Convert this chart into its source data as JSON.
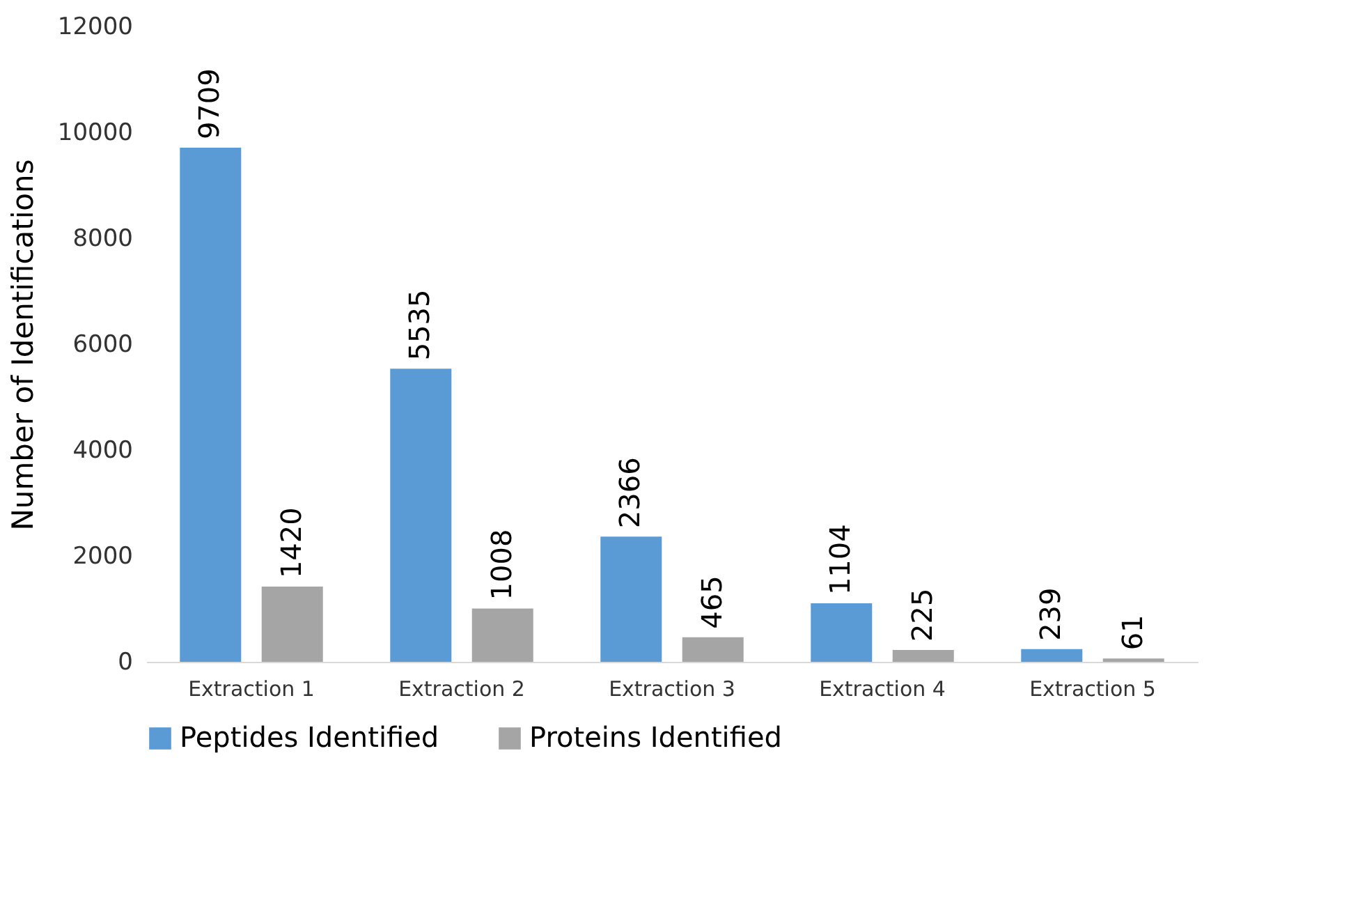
{
  "chart_data": {
    "type": "bar",
    "ylabel": "Number of Identifications",
    "categories": [
      "Extraction 1",
      "Extraction 2",
      "Extraction 3",
      "Extraction 4",
      "Extraction 5"
    ],
    "series": [
      {
        "name": "Peptides Identified",
        "color": "#5b9bd5",
        "values": [
          9709,
          5535,
          2366,
          1104,
          239
        ]
      },
      {
        "name": "Proteins Identified",
        "color": "#a5a5a5",
        "values": [
          1420,
          1008,
          465,
          225,
          61
        ]
      }
    ],
    "ylim": [
      0,
      12000
    ],
    "yticks": [
      0,
      2000,
      4000,
      6000,
      8000,
      10000,
      12000
    ],
    "grid": false,
    "legend": "bottom",
    "data_labels": true
  }
}
